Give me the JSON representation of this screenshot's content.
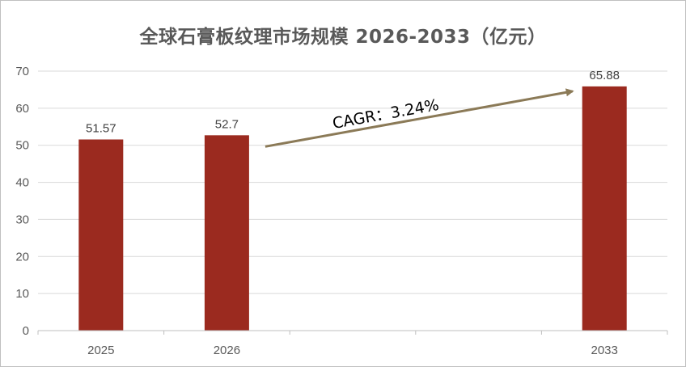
{
  "chart_data": {
    "type": "bar",
    "title": "全球石膏板纹理市场规模 2026-2033（亿元）",
    "categories": [
      "2025",
      "2026",
      "",
      "",
      "2033"
    ],
    "values": [
      51.57,
      52.7,
      null,
      null,
      65.88
    ],
    "value_labels": [
      "51.57",
      "52.7",
      "",
      "",
      "65.88"
    ],
    "ylim": [
      0,
      70
    ],
    "yticks": [
      0,
      10,
      20,
      30,
      40,
      50,
      60,
      70
    ],
    "xlabel": "",
    "ylabel": "",
    "grid": true,
    "legend": "none",
    "bar_color": "#9b2a1f",
    "annotation": {
      "text": "CAGR：3.24%",
      "from_category": "2026",
      "to_category": "2033",
      "color": "#8b7a57"
    }
  }
}
